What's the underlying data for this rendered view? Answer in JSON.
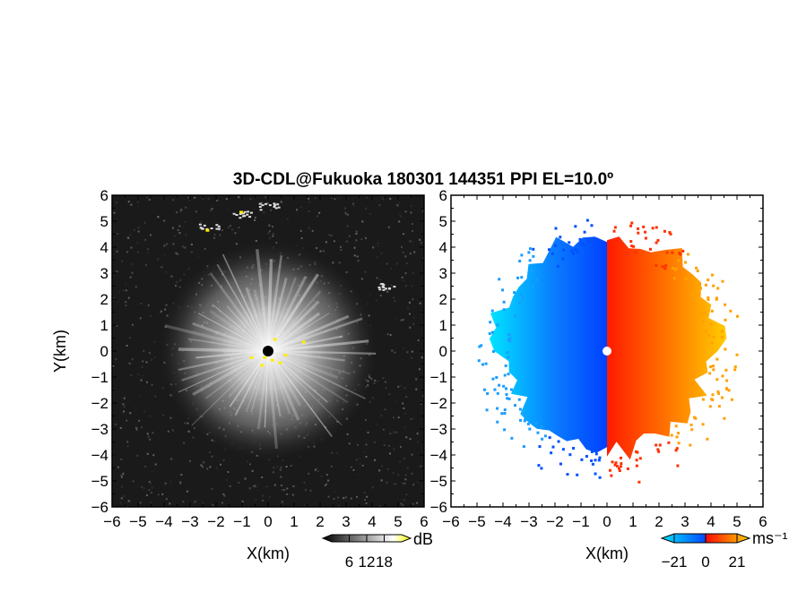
{
  "chart_data": [
    {
      "type": "heatmap",
      "panel": "left",
      "title": "3D-CDL@Fukuoka 180301 144351 PPI EL=10.0º",
      "xlabel": "X(km)",
      "ylabel": "Y(km)",
      "xlim": [
        -6,
        6
      ],
      "ylim": [
        -6,
        6
      ],
      "xticks": [
        "−6",
        "−5",
        "−4",
        "−3",
        "−2",
        "−1",
        "0",
        "1",
        "2",
        "3",
        "4",
        "5",
        "6"
      ],
      "yticks": [
        "6",
        "5",
        "4",
        "3",
        "2",
        "1",
        "0",
        "−1",
        "−2",
        "−3",
        "−4",
        "−5",
        "−6"
      ],
      "field": "signal intensity (grayscale)",
      "colorbar": {
        "unit": "dB",
        "ticks": [
          "6",
          "12",
          "18"
        ],
        "range": [
          0,
          24
        ],
        "colors": [
          "#000000",
          "#ffffff",
          "#ffff00"
        ]
      },
      "echo_radius_km": 4.2,
      "features": [
        {
          "label": "cluster",
          "x": -2.3,
          "y": 4.8
        },
        {
          "label": "cluster",
          "x": -1.0,
          "y": 5.3
        },
        {
          "label": "cluster",
          "x": 0.0,
          "y": 5.6
        },
        {
          "label": "cluster",
          "x": 4.5,
          "y": 2.5
        }
      ],
      "background": "#1a1a1a"
    },
    {
      "type": "heatmap",
      "panel": "right",
      "xlabel": "X(km)",
      "ylabel": "",
      "xlim": [
        -6,
        6
      ],
      "ylim": [
        -6,
        6
      ],
      "xticks": [
        "−6",
        "−5",
        "−4",
        "−3",
        "−2",
        "−1",
        "0",
        "1",
        "2",
        "3",
        "4",
        "5",
        "6"
      ],
      "yticks": [
        "6",
        "5",
        "4",
        "3",
        "2",
        "1",
        "0",
        "−1",
        "−2",
        "−3",
        "−4",
        "−5",
        "−6"
      ],
      "field": "Doppler velocity",
      "colorbar": {
        "unit": "ms⁻¹",
        "ticks": [
          "−21",
          "0",
          "21"
        ],
        "range": [
          -21,
          21
        ],
        "colors": [
          "#00e0ff",
          "#0050ff",
          "#ff1000",
          "#ffd000"
        ]
      },
      "echo_extent_km": {
        "west": 4.4,
        "east": 4.2,
        "north": 5.6,
        "south": 4.2
      },
      "background": "#ffffff"
    }
  ]
}
